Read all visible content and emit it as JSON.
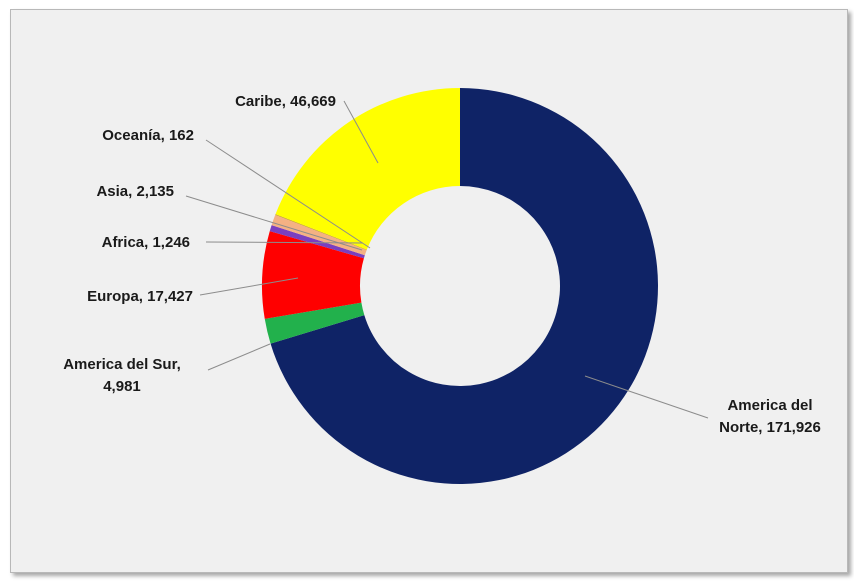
{
  "chart_data": {
    "type": "pie",
    "donut": true,
    "slices": [
      {
        "label": "America del Norte",
        "value": 171926,
        "value_text": "171,926",
        "color": "#0f2366"
      },
      {
        "label": "America del Sur",
        "value": 4981,
        "value_text": "4,981",
        "color": "#22b14c"
      },
      {
        "label": "Europa",
        "value": 17427,
        "value_text": "17,427",
        "color": "#ff0000"
      },
      {
        "label": "Africa",
        "value": 1246,
        "value_text": "1,246",
        "color": "#7a3fbf"
      },
      {
        "label": "Asia",
        "value": 2135,
        "value_text": "2,135",
        "color": "#f4b183"
      },
      {
        "label": "Oceanía",
        "value": 162,
        "value_text": "162",
        "color": "#c9a227"
      },
      {
        "label": "Caribe",
        "value": 46669,
        "value_text": "46,669",
        "color": "#ffff00"
      }
    ],
    "legend": "none",
    "data_labels": "category, value"
  },
  "labels": {
    "norte_line1": "America del",
    "norte_line2": "Norte, 171,926",
    "sur_line1": "America del Sur,",
    "sur_line2": "4,981",
    "europa": "Europa, 17,427",
    "africa": "Africa, 1,246",
    "asia": "Asia, 2,135",
    "oceania": "Oceanía, 162",
    "caribe": "Caribe, 46,669"
  }
}
